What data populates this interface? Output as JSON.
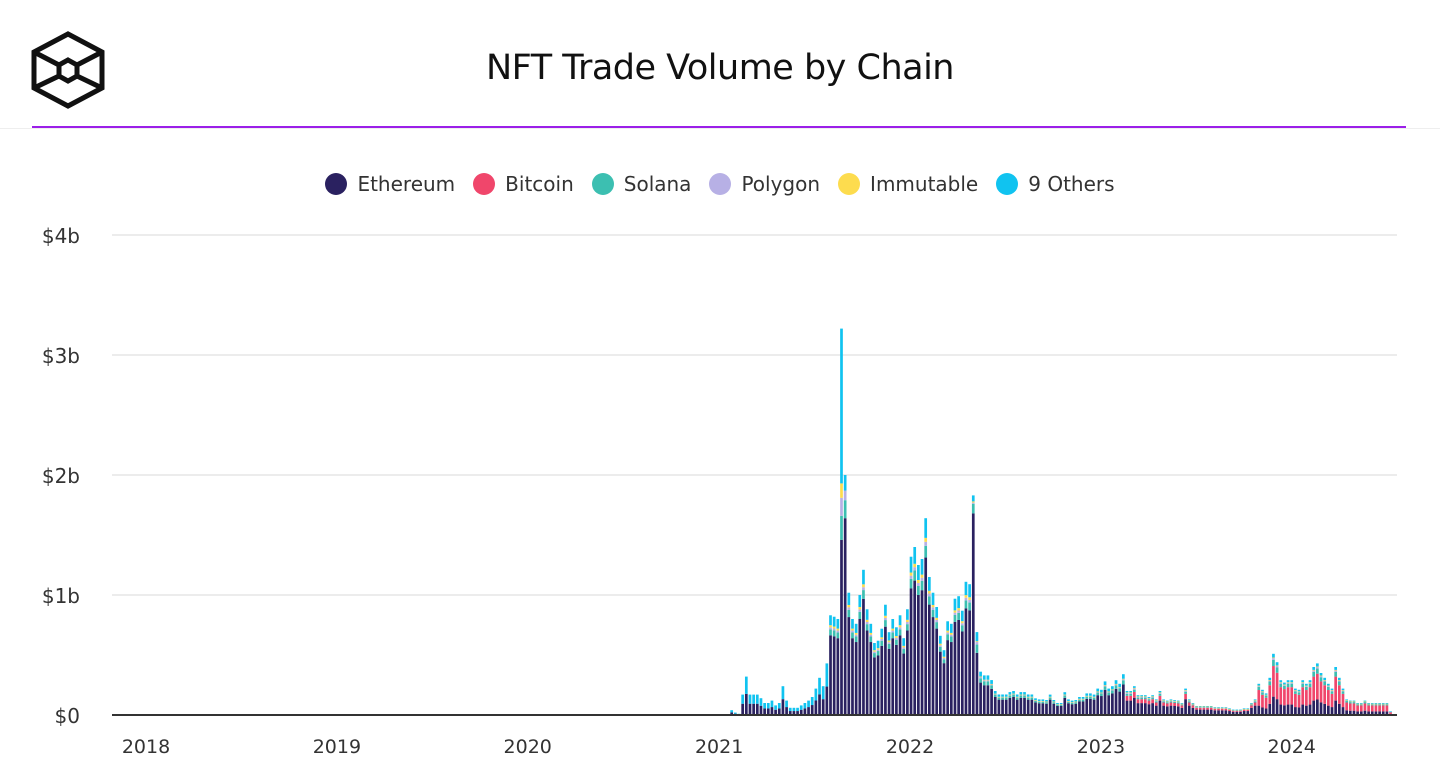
{
  "header": {
    "title": "NFT Trade Volume by Chain",
    "logo": "the-block-cube-logo",
    "accent_color": "#9b1fe8"
  },
  "chart_data": {
    "type": "bar",
    "stacked": true,
    "title": "NFT Trade Volume by Chain",
    "unit": "USD millions",
    "frequency": "weekly",
    "first_week": "2021-01-25",
    "y_ticks": [
      {
        "value": 0,
        "label": "$0"
      },
      {
        "value": 1000,
        "label": "$1b"
      },
      {
        "value": 2000,
        "label": "$2b"
      },
      {
        "value": 3000,
        "label": "$3b"
      },
      {
        "value": 4000,
        "label": "$4b"
      }
    ],
    "ylim": [
      0,
      4000
    ],
    "x_ticks": [
      "2018",
      "2019",
      "2020",
      "2021",
      "2022",
      "2023",
      "2024"
    ],
    "xlim": [
      "2017-10-15",
      "2024-07-31"
    ],
    "grid": true,
    "legend_position": "top",
    "series": [
      {
        "name": "Ethereum",
        "color": "#2a2160",
        "values": [
          22,
          11,
          6,
          94,
          176,
          94,
          94,
          94,
          77,
          55,
          55,
          66,
          44,
          55,
          132,
          66,
          33,
          33,
          33,
          44,
          55,
          66,
          83,
          121,
          171,
          132,
          237,
          664,
          656,
          640,
          1460,
          1640,
          816,
          640,
          608,
          800,
          968,
          704,
          608,
          480,
          496,
          576,
          736,
          552,
          640,
          584,
          664,
          512,
          704,
          1056,
          1120,
          1000,
          1040,
          1312,
          920,
          816,
          720,
          528,
          432,
          624,
          608,
          776,
          792,
          696,
          888,
          872,
          1680,
          518,
          270,
          248,
          248,
          218,
          150,
          128,
          128,
          128,
          143,
          150,
          128,
          143,
          143,
          128,
          128,
          105,
          98,
          98,
          94,
          128,
          94,
          75,
          75,
          143,
          98,
          90,
          94,
          113,
          113,
          135,
          135,
          128,
          165,
          158,
          210,
          165,
          180,
          218,
          195,
          255,
          120,
          120,
          144,
          99,
          99,
          99,
          90,
          99,
          78,
          120,
          78,
          72,
          78,
          75,
          72,
          60,
          132,
          78,
          60,
          45,
          45,
          45,
          45,
          45,
          39,
          39,
          39,
          39,
          33,
          27,
          27,
          27,
          33,
          33,
          60,
          78,
          78,
          63,
          54,
          93,
          153,
          132,
          87,
          81,
          87,
          87,
          66,
          63,
          87,
          78,
          87,
          120,
          129,
          105,
          93,
          78,
          66,
          120,
          93,
          66,
          39,
          36,
          36,
          30,
          30,
          36,
          30,
          30,
          30,
          30,
          30,
          30,
          9
        ]
      },
      {
        "name": "Bitcoin",
        "color": "#f0466b",
        "values": [
          0,
          0,
          0,
          0,
          0,
          0,
          0,
          0,
          0,
          0,
          0,
          0,
          0,
          0,
          0,
          0,
          0,
          0,
          0,
          0,
          0,
          0,
          0,
          0,
          0,
          0,
          0,
          0,
          0,
          0,
          0,
          0,
          0,
          0,
          0,
          0,
          0,
          0,
          0,
          0,
          0,
          0,
          0,
          0,
          0,
          0,
          0,
          0,
          0,
          0,
          0,
          0,
          0,
          0,
          0,
          0,
          0,
          0,
          0,
          0,
          0,
          0,
          0,
          0,
          0,
          0,
          0,
          0,
          0,
          0,
          0,
          0,
          0,
          0,
          0,
          0,
          0,
          0,
          0,
          0,
          0,
          0,
          0,
          0,
          0,
          0,
          0,
          0,
          0,
          0,
          0,
          0,
          0,
          0,
          0,
          0,
          0,
          0,
          0,
          0,
          0,
          0,
          0,
          0,
          0,
          0,
          0,
          0,
          40,
          40,
          48,
          33,
          33,
          33,
          30,
          33,
          26,
          40,
          26,
          24,
          26,
          25,
          24,
          20,
          44,
          26,
          20,
          15,
          15,
          15,
          15,
          15,
          13,
          13,
          13,
          13,
          11,
          9,
          9,
          9,
          11,
          11,
          20,
          26,
          130,
          105,
          90,
          155,
          255,
          220,
          145,
          135,
          145,
          145,
          110,
          105,
          145,
          130,
          145,
          200,
          215,
          175,
          155,
          130,
          110,
          200,
          155,
          110,
          65,
          60,
          60,
          50,
          50,
          60,
          50,
          50,
          50,
          50,
          50,
          50,
          15
        ]
      },
      {
        "name": "Solana",
        "color": "#3cbfb1",
        "values": [
          0,
          0,
          0,
          0,
          0,
          0,
          0,
          0,
          0,
          0,
          0,
          0,
          0,
          0,
          0,
          0,
          0,
          0,
          0,
          0,
          0,
          0,
          0,
          0,
          0,
          0,
          0,
          50,
          49,
          48,
          200,
          150,
          61,
          48,
          46,
          60,
          73,
          53,
          46,
          36,
          37,
          43,
          55,
          41,
          48,
          44,
          50,
          38,
          53,
          79,
          84,
          75,
          78,
          98,
          69,
          61,
          54,
          40,
          32,
          47,
          46,
          58,
          59,
          52,
          67,
          65,
          80,
          69,
          36,
          33,
          33,
          29,
          20,
          17,
          17,
          17,
          19,
          20,
          17,
          19,
          19,
          17,
          17,
          14,
          13,
          13,
          13,
          17,
          13,
          10,
          10,
          19,
          13,
          12,
          13,
          15,
          15,
          18,
          18,
          17,
          22,
          21,
          28,
          22,
          24,
          29,
          26,
          34,
          16,
          16,
          19,
          13,
          13,
          13,
          12,
          13,
          10,
          16,
          10,
          10,
          10,
          10,
          10,
          8,
          18,
          10,
          8,
          6,
          6,
          6,
          6,
          6,
          5,
          5,
          5,
          5,
          4,
          4,
          4,
          4,
          4,
          4,
          8,
          10,
          26,
          21,
          18,
          31,
          51,
          44,
          29,
          27,
          29,
          29,
          22,
          21,
          29,
          26,
          29,
          40,
          43,
          35,
          31,
          26,
          22,
          40,
          31,
          22,
          13,
          12,
          12,
          10,
          10,
          12,
          10,
          10,
          10,
          10,
          10,
          10,
          3
        ]
      },
      {
        "name": "Polygon",
        "color": "#b7b0e5",
        "values": [
          0,
          0,
          0,
          0,
          0,
          0,
          0,
          0,
          0,
          0,
          0,
          0,
          0,
          0,
          0,
          0,
          0,
          0,
          0,
          0,
          0,
          0,
          0,
          0,
          0,
          0,
          0,
          17,
          16,
          16,
          150,
          80,
          20,
          16,
          15,
          20,
          24,
          18,
          15,
          12,
          12,
          14,
          18,
          14,
          16,
          15,
          17,
          13,
          18,
          26,
          28,
          25,
          26,
          33,
          23,
          20,
          18,
          13,
          11,
          16,
          15,
          19,
          20,
          17,
          22,
          22,
          10,
          21,
          11,
          10,
          10,
          9,
          6,
          5,
          5,
          5,
          6,
          6,
          5,
          6,
          6,
          5,
          5,
          4,
          4,
          4,
          4,
          5,
          4,
          3,
          3,
          6,
          4,
          4,
          4,
          5,
          5,
          5,
          5,
          5,
          7,
          6,
          8,
          7,
          7,
          9,
          8,
          10,
          8,
          8,
          10,
          7,
          7,
          7,
          6,
          7,
          5,
          8,
          5,
          5,
          5,
          5,
          5,
          4,
          9,
          5,
          4,
          3,
          3,
          3,
          3,
          3,
          3,
          3,
          3,
          3,
          2,
          2,
          2,
          2,
          2,
          2,
          4,
          5,
          8,
          6,
          5,
          9,
          15,
          13,
          9,
          8,
          9,
          9,
          7,
          6,
          9,
          8,
          9,
          12,
          13,
          11,
          9,
          8,
          7,
          12,
          9,
          7,
          4,
          4,
          4,
          3,
          3,
          4,
          3,
          3,
          3,
          3,
          3,
          3,
          1
        ]
      },
      {
        "name": "Immutable",
        "color": "#fddc4e",
        "values": [
          0,
          0,
          0,
          0,
          0,
          0,
          0,
          0,
          0,
          0,
          0,
          0,
          0,
          0,
          0,
          0,
          0,
          0,
          0,
          0,
          0,
          0,
          0,
          0,
          0,
          0,
          0,
          17,
          16,
          16,
          120,
          0,
          20,
          16,
          15,
          20,
          24,
          18,
          15,
          12,
          12,
          14,
          18,
          14,
          16,
          15,
          17,
          13,
          18,
          26,
          28,
          25,
          26,
          33,
          23,
          20,
          18,
          13,
          11,
          16,
          15,
          19,
          20,
          17,
          22,
          22,
          10,
          7,
          4,
          3,
          3,
          3,
          2,
          2,
          2,
          2,
          2,
          2,
          2,
          2,
          2,
          2,
          2,
          1,
          1,
          1,
          1,
          2,
          1,
          1,
          1,
          2,
          1,
          1,
          1,
          2,
          2,
          2,
          2,
          2,
          2,
          2,
          3,
          2,
          2,
          3,
          3,
          3,
          4,
          4,
          5,
          3,
          3,
          3,
          3,
          3,
          3,
          4,
          3,
          2,
          3,
          3,
          2,
          2,
          4,
          3,
          2,
          2,
          2,
          2,
          2,
          2,
          1,
          1,
          1,
          1,
          1,
          1,
          1,
          1,
          1,
          1,
          2,
          3,
          3,
          2,
          2,
          3,
          5,
          4,
          3,
          3,
          3,
          3,
          2,
          2,
          3,
          3,
          3,
          4,
          4,
          3,
          3,
          3,
          2,
          4,
          3,
          2,
          1,
          1,
          1,
          1,
          1,
          1,
          1,
          1,
          1,
          1,
          1,
          1,
          0
        ]
      },
      {
        "name": "9 Others",
        "color": "#10c3f0",
        "values": [
          18,
          9,
          4,
          76,
          144,
          76,
          76,
          76,
          63,
          45,
          45,
          54,
          36,
          45,
          108,
          54,
          27,
          27,
          27,
          36,
          45,
          54,
          67,
          99,
          139,
          108,
          193,
          83,
          82,
          80,
          1290,
          130,
          102,
          80,
          76,
          100,
          121,
          88,
          76,
          60,
          62,
          72,
          92,
          69,
          80,
          73,
          83,
          64,
          88,
          132,
          140,
          125,
          130,
          164,
          115,
          102,
          90,
          66,
          54,
          78,
          76,
          97,
          99,
          87,
          111,
          109,
          50,
          76,
          40,
          36,
          36,
          32,
          22,
          19,
          19,
          19,
          21,
          22,
          19,
          21,
          21,
          19,
          19,
          15,
          14,
          14,
          13,
          18,
          13,
          11,
          11,
          20,
          14,
          13,
          13,
          15,
          15,
          20,
          20,
          18,
          24,
          23,
          31,
          24,
          27,
          31,
          28,
          38,
          12,
          12,
          14,
          10,
          10,
          10,
          9,
          10,
          8,
          12,
          8,
          7,
          8,
          7,
          7,
          6,
          13,
          8,
          6,
          4,
          4,
          4,
          4,
          4,
          4,
          4,
          4,
          4,
          4,
          2,
          2,
          2,
          4,
          4,
          6,
          8,
          15,
          13,
          11,
          19,
          31,
          27,
          17,
          16,
          17,
          17,
          13,
          13,
          17,
          15,
          17,
          24,
          26,
          21,
          19,
          15,
          13,
          24,
          19,
          13,
          8,
          7,
          7,
          6,
          6,
          7,
          6,
          6,
          6,
          6,
          6,
          6,
          2
        ]
      }
    ]
  }
}
